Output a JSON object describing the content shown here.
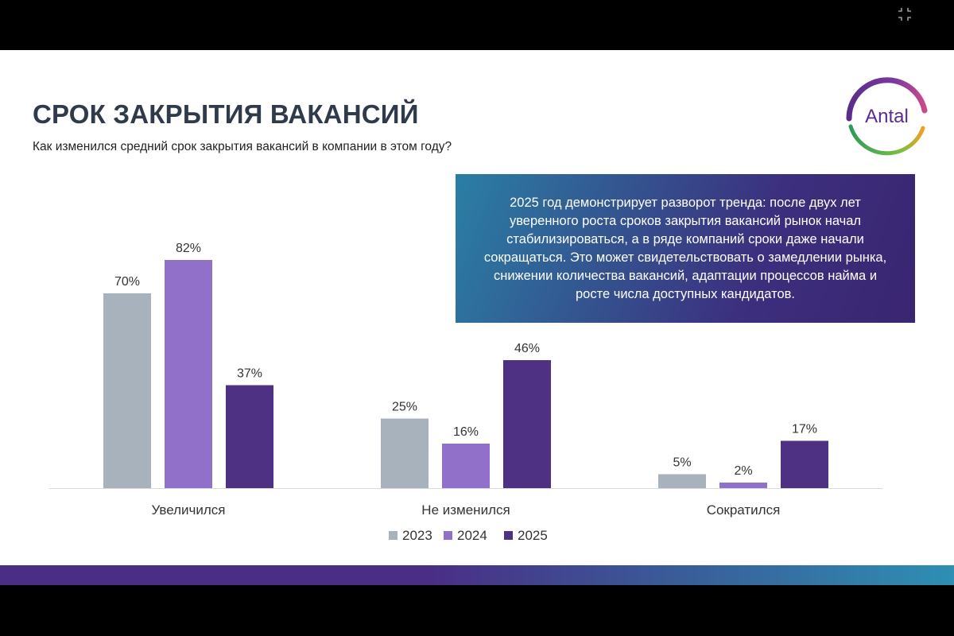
{
  "slide": {
    "title": "СРОК ЗАКРЫТИЯ ВАКАНСИЙ",
    "subtitle": "Как изменился средний срок закрытия вакансий в компании в этом году?",
    "logo_text": "Antal",
    "callout": "2025 год демонстрирует разворот тренда: после двух лет уверенного роста сроков закрытия вакансий рынок начал стабилизироваться, а в ряде компаний сроки даже начали сокращаться. Это может свидетельствовать о замедлении рынка, снижении количества вакансий, адаптации процессов найма и росте числа доступных кандидатов."
  },
  "icons": {
    "exit_fullscreen": "exit-fullscreen-icon"
  },
  "chart_data": {
    "type": "bar",
    "categories": [
      "Увеличился",
      "Не изменился",
      "Сократился"
    ],
    "series": [
      {
        "name": "2023",
        "values": [
          70,
          25,
          5
        ],
        "color": "#a8b2bd"
      },
      {
        "name": "2024",
        "values": [
          82,
          16,
          2
        ],
        "color": "#9070c8"
      },
      {
        "name": "2025",
        "values": [
          37,
          46,
          17
        ],
        "color": "#4f3184"
      }
    ],
    "value_suffix": "%",
    "legend_position": "bottom-center",
    "ylim": [
      0,
      100
    ],
    "grid": false
  }
}
